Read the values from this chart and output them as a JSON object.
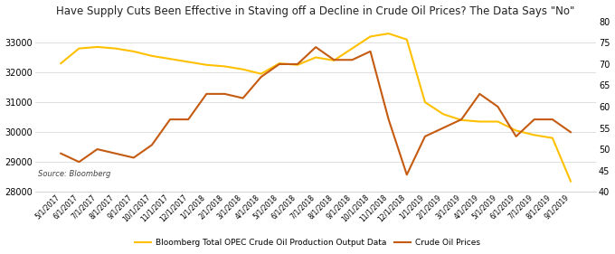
{
  "title": "Have Supply Cuts Been Effective in Staving off a Decline in Crude Oil Prices? The Data Says \"No\"",
  "source": "Source: Bloomberg",
  "legend": [
    "Bloomberg Total OPEC Crude Oil Production Output Data",
    "Crude Oil Prices"
  ],
  "line_colors": [
    "#FFC000",
    "#C55A11"
  ],
  "background_color": "#FFFFFF",
  "yleft_min": 28000,
  "yleft_max": 33700,
  "yright_min": 40,
  "yright_max": 80,
  "yleft_ticks": [
    28000,
    29000,
    30000,
    31000,
    32000,
    33000
  ],
  "yright_ticks": [
    40,
    45,
    50,
    55,
    60,
    65,
    70,
    75,
    80
  ],
  "x_labels": [
    "5/1/2017",
    "6/1/2017",
    "7/1/2017",
    "8/1/2017",
    "9/1/2017",
    "10/1/2017",
    "11/1/2017",
    "12/1/2017",
    "1/1/2018",
    "2/1/2018",
    "3/1/2018",
    "4/1/2018",
    "5/1/2018",
    "6/1/2018",
    "7/1/2018",
    "8/1/2018",
    "9/1/2018",
    "10/1/2018",
    "11/1/2018",
    "12/1/2018",
    "1/1/2019",
    "2/1/2019",
    "3/1/2019",
    "4/1/2019",
    "5/1/2019",
    "6/1/2019",
    "7/1/2019",
    "8/1/2019",
    "9/1/2019"
  ],
  "opec_production": [
    32300,
    32800,
    32850,
    32800,
    32700,
    32550,
    32450,
    32350,
    32250,
    32200,
    32100,
    31950,
    32300,
    32250,
    32500,
    32400,
    32800,
    33200,
    33300,
    33100,
    31000,
    30600,
    30400,
    30350,
    30350,
    30050,
    29900,
    29800,
    28350
  ],
  "crude_oil_prices": [
    49,
    47,
    50,
    49,
    48,
    51,
    57,
    57,
    63,
    63,
    62,
    67,
    70,
    70,
    74,
    71,
    71,
    73,
    57,
    44,
    53,
    55,
    57,
    63,
    60,
    53,
    57,
    57,
    54
  ],
  "title_fontsize": 8.5,
  "tick_fontsize": 7,
  "xlabel_fontsize": 5.5,
  "legend_fontsize": 6.5,
  "source_fontsize": 6.0,
  "grid_color": "#D9D9D9",
  "spine_color": "#CCCCCC"
}
